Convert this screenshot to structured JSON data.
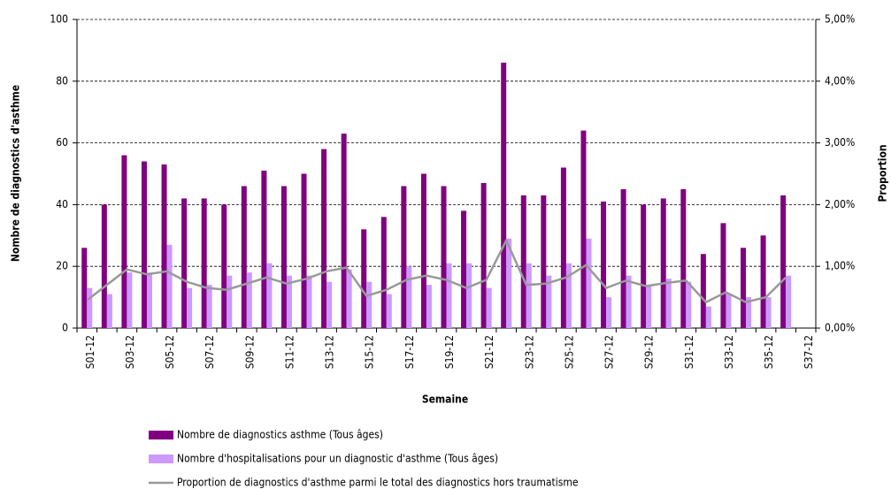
{
  "chart_data": {
    "type": "bar_line",
    "xlabel": "Semaine",
    "ylabel": "Nombre de diagnostics d'asthme",
    "y2label": "Proportion",
    "categories": [
      "S01-12",
      null,
      "S03-12",
      null,
      "S05-12",
      null,
      "S07-12",
      null,
      "S09-12",
      null,
      "S11-12",
      null,
      "S13-12",
      null,
      "S15-12",
      null,
      "S17-12",
      null,
      "S19-12",
      null,
      "S21-12",
      null,
      "S23-12",
      null,
      "S25-12",
      null,
      "S27-12",
      null,
      "S29-12",
      null,
      "S31-12",
      null,
      "S33-12",
      null,
      "S35-12",
      null,
      "S37-12"
    ],
    "series": [
      {
        "name": "Nombre de diagnostics asthme (Tous âges)",
        "color": "#800080",
        "kind": "bar",
        "values": [
          26,
          40,
          56,
          54,
          53,
          42,
          42,
          40,
          46,
          51,
          46,
          50,
          58,
          63,
          32,
          36,
          46,
          50,
          46,
          38,
          47,
          86,
          43,
          43,
          52,
          64,
          41,
          45,
          40,
          42,
          45,
          24,
          34,
          26,
          30,
          43,
          null
        ]
      },
      {
        "name": "Nombre d'hospitalisations pour un diagnostic d'asthme (Tous âges)",
        "color": "#cc99ff",
        "kind": "bar",
        "values": [
          13,
          11,
          18,
          18,
          27,
          13,
          14,
          17,
          18,
          21,
          17,
          17,
          15,
          19,
          15,
          11,
          20,
          14,
          21,
          21,
          13,
          29,
          21,
          17,
          21,
          29,
          10,
          17,
          14,
          16,
          15,
          7,
          11,
          10,
          10,
          17,
          null
        ]
      },
      {
        "name": "Proportion de diagnostics d'asthme parmi le total des diagnostics hors traumatisme",
        "color": "#999999",
        "kind": "line",
        "axis": "y2",
        "values": [
          0.45,
          0.7,
          0.95,
          0.87,
          0.92,
          0.75,
          0.65,
          0.62,
          0.72,
          0.82,
          0.72,
          0.8,
          0.92,
          0.98,
          0.52,
          0.62,
          0.78,
          0.85,
          0.78,
          0.65,
          0.78,
          1.42,
          0.7,
          0.72,
          0.82,
          1.02,
          0.65,
          0.77,
          0.68,
          0.73,
          0.77,
          0.42,
          0.58,
          0.42,
          0.5,
          0.82,
          null
        ]
      }
    ],
    "ylim": [
      0,
      100
    ],
    "yticks": [
      0,
      20,
      40,
      60,
      80,
      100
    ],
    "y2lim": [
      0,
      5
    ],
    "y2ticks": [
      {
        "value": 0,
        "label": "0,00%"
      },
      {
        "value": 1,
        "label": "1,00%"
      },
      {
        "value": 2,
        "label": "2,00%"
      },
      {
        "value": 3,
        "label": "3,00%"
      },
      {
        "value": 4,
        "label": "4,00%"
      },
      {
        "value": 5,
        "label": "5,00%"
      }
    ],
    "grid": true
  }
}
